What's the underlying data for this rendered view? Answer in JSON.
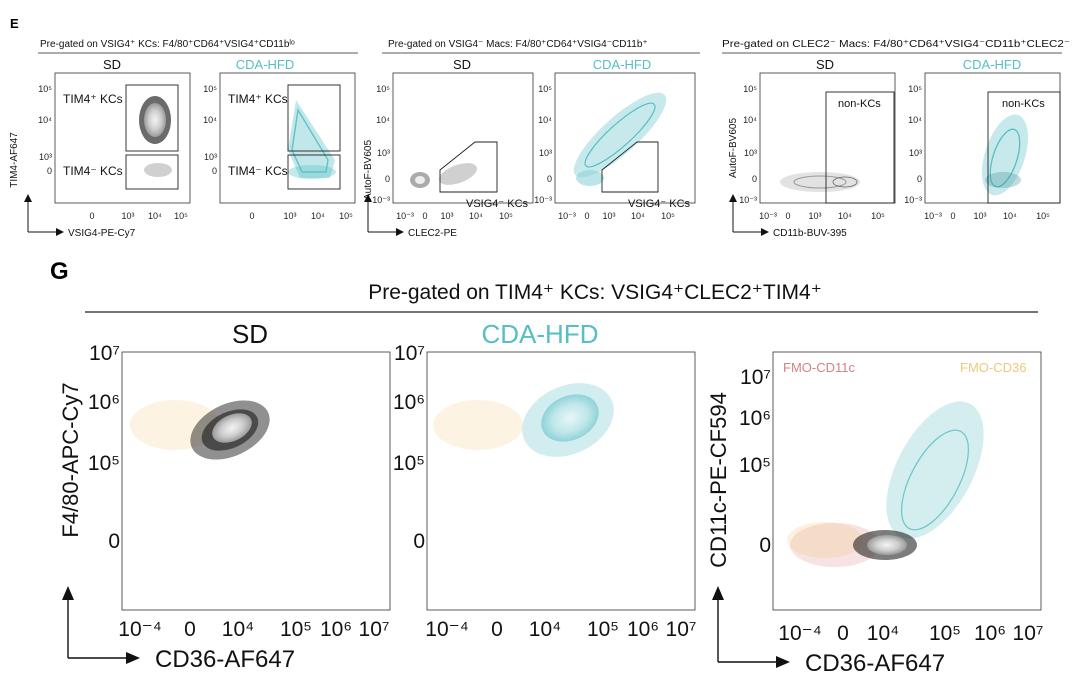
{
  "panel_e": {
    "letter": "E",
    "groups": [
      {
        "header": "Pre-gated on VSIG4⁺ KCs: F4/80⁺CD64⁺VSIG4⁺CD11bˡᵒ",
        "ylabel": "TIM4-AF647",
        "xlabel": "VSIG4-PE-Cy7",
        "plots": [
          {
            "condition": "SD",
            "color": "#111111",
            "gates": [
              "TIM4⁺ KCs",
              "TIM4⁻ KCs"
            ],
            "xticks": [
              "0",
              "10³",
              "10⁴",
              "10⁵"
            ],
            "yticks": [
              "10⁵",
              "10⁴",
              "10³",
              "0"
            ]
          },
          {
            "condition": "CDA-HFD",
            "color": "#55bfc4",
            "gates": [
              "TIM4⁺ KCs",
              "TIM4⁻ KCs"
            ],
            "xticks": [
              "0",
              "10³",
              "10⁴",
              "10⁵"
            ],
            "yticks": [
              "10⁵",
              "10⁴",
              "10³",
              "0"
            ]
          }
        ]
      },
      {
        "header": "Pre-gated on VSIG4⁻ Macs: F4/80⁺CD64⁺VSIG4⁻CD11b⁺",
        "ylabel": "AutoF-BV605",
        "xlabel": "CLEC2-PE",
        "plots": [
          {
            "condition": "SD",
            "color": "#111111",
            "gates": [
              "VSIG4⁻ KCs"
            ],
            "xticks": [
              "10⁻³",
              "0",
              "10³",
              "10⁴",
              "10⁵"
            ],
            "yticks": [
              "10⁵",
              "10⁴",
              "10³",
              "0",
              "10⁻³"
            ]
          },
          {
            "condition": "CDA-HFD",
            "color": "#55bfc4",
            "gates": [
              "VSIG4⁻ KCs"
            ],
            "xticks": [
              "10⁻³",
              "0",
              "10³",
              "10⁴",
              "10⁵"
            ],
            "yticks": [
              "10⁵",
              "10⁴",
              "10³",
              "0",
              "10⁻³"
            ]
          }
        ]
      },
      {
        "header": "Pre-gated on CLEC2⁻ Macs: F4/80⁺CD64⁺VSIG4⁻CD11b⁺CLEC2⁻",
        "ylabel": "AutoF-BV605",
        "xlabel": "CD11b-BUV-395",
        "plots": [
          {
            "condition": "SD",
            "color": "#111111",
            "gates": [
              "non-KCs"
            ],
            "xticks": [
              "10⁻³",
              "0",
              "10³",
              "10⁴",
              "10⁵"
            ],
            "yticks": [
              "10⁵",
              "10⁴",
              "10³",
              "0",
              "10⁻³"
            ]
          },
          {
            "condition": "CDA-HFD",
            "color": "#55bfc4",
            "gates": [
              "non-KCs"
            ],
            "xticks": [
              "10⁻³",
              "0",
              "10³",
              "10⁴",
              "10⁵"
            ],
            "yticks": [
              "10⁵",
              "10⁴",
              "10³",
              "0",
              "10⁻³"
            ]
          }
        ]
      }
    ]
  },
  "panel_g": {
    "letter": "G",
    "header": "Pre-gated on TIM4⁺ KCs: VSIG4⁺CLEC2⁺TIM4⁺",
    "plots": [
      {
        "condition": "SD",
        "color": "#111111",
        "ylabel": "F4/80-APC-Cy7",
        "xlabel": "CD36-AF647",
        "xticks": [
          "10⁻⁴",
          "0",
          "10⁴",
          "10⁵",
          "10⁶",
          "10⁷"
        ],
        "yticks": [
          "10⁷",
          "10⁶",
          "10⁵",
          "0"
        ]
      },
      {
        "condition": "CDA-HFD",
        "color": "#55bfc4",
        "ylabel": "",
        "xlabel": "",
        "xticks": [
          "10⁻⁴",
          "0",
          "10⁴",
          "10⁵",
          "10⁶",
          "10⁷"
        ],
        "yticks": [
          "10⁷",
          "10⁶",
          "10⁵",
          "0"
        ]
      },
      {
        "condition": "",
        "color": "#55bfc4",
        "ylabel": "CD11c-PE-CF594",
        "xlabel": "CD36-AF647",
        "xticks": [
          "10⁻⁴",
          "0",
          "10⁴",
          "10⁵",
          "10⁶",
          "10⁷"
        ],
        "yticks": [
          "10⁷",
          "10⁶",
          "10⁵",
          "0"
        ],
        "legend": [
          {
            "label": "FMO-CD11c",
            "color": "#d98080"
          },
          {
            "label": "FMO-CD36",
            "color": "#f0c77c"
          }
        ]
      }
    ]
  }
}
